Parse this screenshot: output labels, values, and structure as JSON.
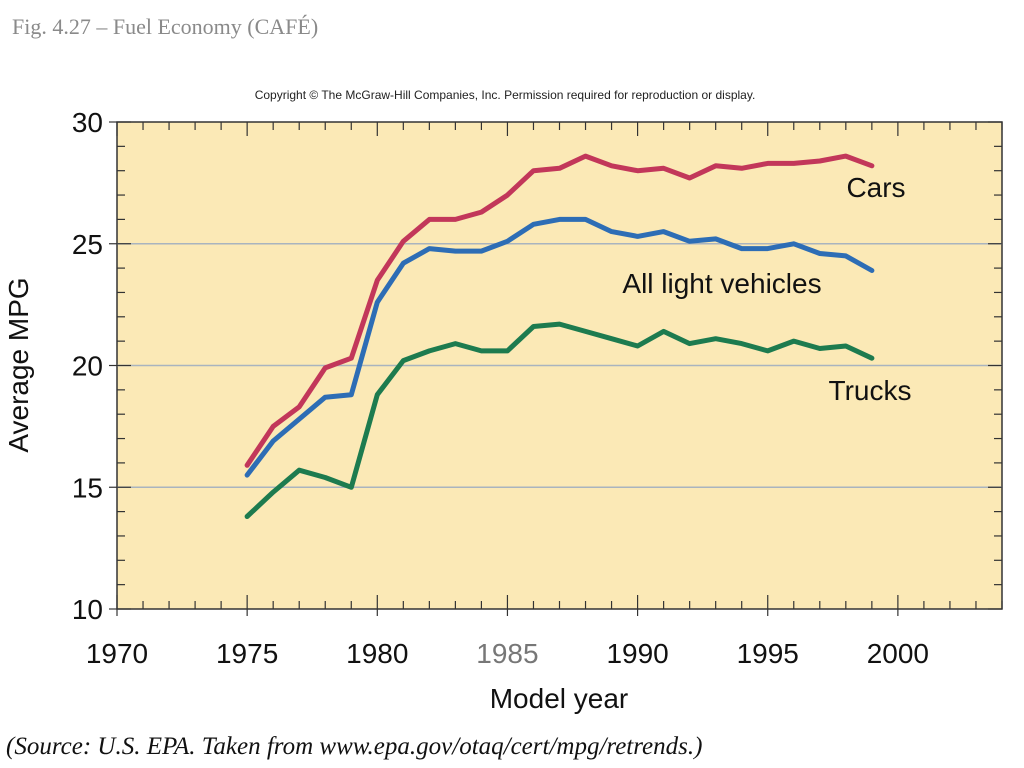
{
  "figure": {
    "title": "Fig. 4.27 – Fuel Economy (CAFÉ)",
    "copyright": "Copyright © The McGraw-Hill Companies, Inc. Permission required for reproduction or display.",
    "source": "(Source: U.S. EPA. Taken from www.epa.gov/otaq/cert/mpg/retrends.)"
  },
  "colors": {
    "plot_background": "#fbe9b6",
    "gridline": "#a9b4bf",
    "axis": "#333333"
  },
  "chart_data": {
    "type": "line",
    "title": "",
    "xlabel": "Model year",
    "ylabel": "Average MPG",
    "xlim": [
      1970,
      2004
    ],
    "ylim": [
      10,
      30
    ],
    "xticks": [
      1970,
      1975,
      1980,
      1985,
      1990,
      1995,
      2000
    ],
    "yticks": [
      10,
      15,
      20,
      25,
      30
    ],
    "grid": "horizontal",
    "x": [
      1975,
      1976,
      1977,
      1978,
      1979,
      1980,
      1981,
      1982,
      1983,
      1984,
      1985,
      1986,
      1987,
      1988,
      1989,
      1990,
      1991,
      1992,
      1993,
      1994,
      1995,
      1996,
      1997,
      1998,
      1999
    ],
    "series": [
      {
        "name": "Cars",
        "color": "#c2375a",
        "values": [
          15.9,
          17.5,
          18.3,
          19.9,
          20.3,
          23.5,
          25.1,
          26.0,
          26.0,
          26.3,
          27.0,
          28.0,
          28.1,
          28.6,
          28.2,
          28.0,
          28.1,
          27.7,
          28.2,
          28.1,
          28.3,
          28.3,
          28.4,
          28.6,
          28.2
        ]
      },
      {
        "name": "All light vehicles",
        "color": "#2d6db5",
        "values": [
          15.5,
          16.9,
          17.8,
          18.7,
          18.8,
          22.6,
          24.2,
          24.8,
          24.7,
          24.7,
          25.1,
          25.8,
          26.0,
          26.0,
          25.5,
          25.3,
          25.5,
          25.1,
          25.2,
          24.8,
          24.8,
          25.0,
          24.6,
          24.5,
          23.9
        ]
      },
      {
        "name": "Trucks",
        "color": "#1d7b4f",
        "values": [
          13.8,
          14.8,
          15.7,
          15.4,
          15.0,
          18.8,
          20.2,
          20.6,
          20.9,
          20.6,
          20.6,
          21.6,
          21.7,
          21.4,
          21.1,
          20.8,
          21.4,
          20.9,
          21.1,
          20.9,
          20.6,
          21.0,
          20.7,
          20.8,
          20.3
        ]
      }
    ]
  }
}
